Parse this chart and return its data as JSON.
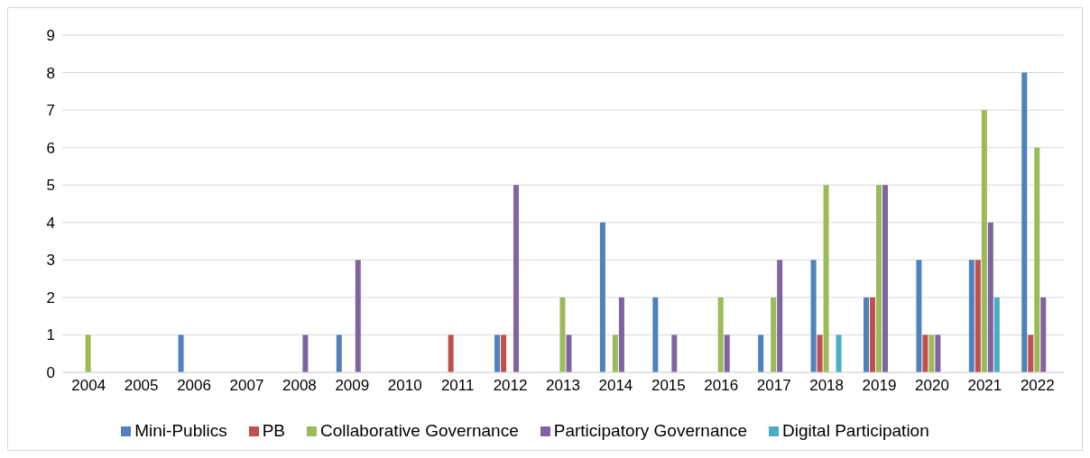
{
  "chart_data": {
    "type": "bar",
    "categories": [
      "2004",
      "2005",
      "2006",
      "2007",
      "2008",
      "2009",
      "2010",
      "2011",
      "2012",
      "2013",
      "2014",
      "2015",
      "2016",
      "2017",
      "2018",
      "2019",
      "2020",
      "2021",
      "2022"
    ],
    "series": [
      {
        "name": "Mini-Publics",
        "color": "#4f81bd",
        "values": [
          0,
          0,
          1,
          0,
          0,
          1,
          0,
          0,
          1,
          0,
          4,
          2,
          0,
          1,
          3,
          2,
          3,
          3,
          8
        ]
      },
      {
        "name": "PB",
        "color": "#c0504d",
        "values": [
          0,
          0,
          0,
          0,
          0,
          0,
          0,
          1,
          1,
          0,
          0,
          0,
          0,
          0,
          1,
          2,
          1,
          3,
          1
        ]
      },
      {
        "name": "Collaborative Governance",
        "color": "#9bbb59",
        "values": [
          1,
          0,
          0,
          0,
          0,
          0,
          0,
          0,
          0,
          2,
          1,
          0,
          2,
          2,
          5,
          5,
          1,
          7,
          6
        ]
      },
      {
        "name": "Participatory Governance",
        "color": "#8064a2",
        "values": [
          0,
          0,
          0,
          0,
          1,
          3,
          0,
          0,
          5,
          1,
          2,
          1,
          1,
          3,
          0,
          5,
          1,
          4,
          2
        ]
      },
      {
        "name": "Digital Participation",
        "color": "#4bacc6",
        "values": [
          0,
          0,
          0,
          0,
          0,
          0,
          0,
          0,
          0,
          0,
          0,
          0,
          0,
          0,
          1,
          0,
          0,
          2,
          0
        ]
      }
    ],
    "ylim": [
      0,
      9
    ],
    "yticks": [
      0,
      1,
      2,
      3,
      4,
      5,
      6,
      7,
      8,
      9
    ],
    "grid": "y",
    "legend": "bottom"
  }
}
